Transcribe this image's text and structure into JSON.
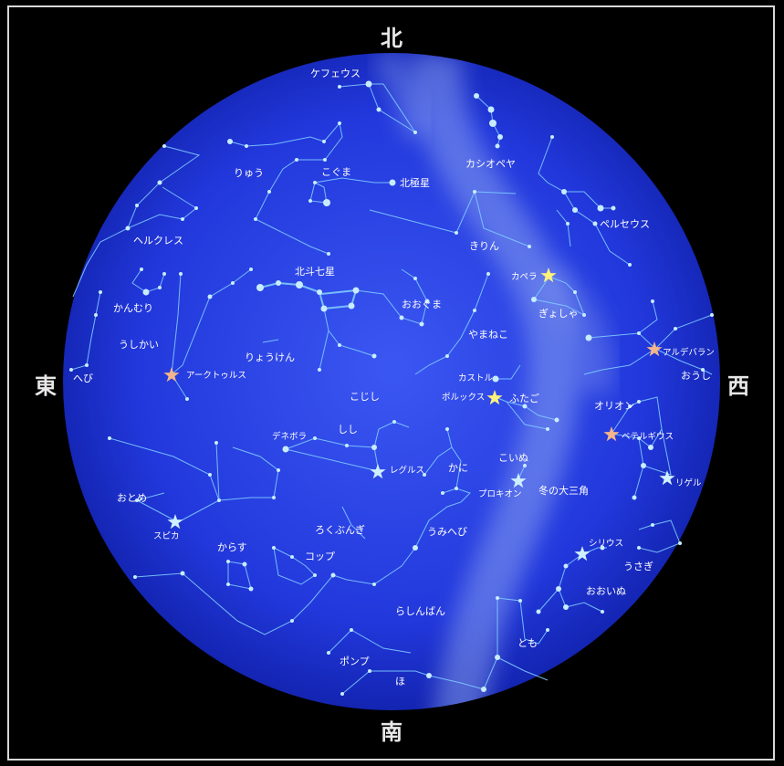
{
  "directions": {
    "north": "北",
    "south": "南",
    "east": "東",
    "west": "西"
  },
  "colors": {
    "background": "#000000",
    "sky": "#1a2bd0",
    "sky_center": "#3b55f0",
    "line": "#8fd6ff",
    "star": "#bfe8ff",
    "yellow_star": "#fff27a",
    "orange_star": "#f5b58a",
    "milky_way": "#8aa4ee"
  },
  "constellations": {
    "cepheus": "ケフェウス",
    "cassiopeia": "カシオペヤ",
    "draco": "りゅう",
    "ursa_minor": "こぐま",
    "polaris": "北極星",
    "perseus": "ペルセウス",
    "hercules": "ヘルクレス",
    "camelopardalis": "きりん",
    "big_dipper": "北斗七星",
    "capella": "カペラ",
    "corona_borealis": "かんむり",
    "ursa_major": "おおぐま",
    "auriga": "ぎょしゃ",
    "bootes": "うしかい",
    "canes_venatici": "りょうけん",
    "lynx": "やまねこ",
    "aldebaran": "アルデバラン",
    "serpens": "へび",
    "arcturus": "アークトゥルス",
    "leo_minor": "こじし",
    "castor": "カストル",
    "taurus": "おうし",
    "pollux": "ポルックス",
    "gemini": "ふたご",
    "orion": "オリオン",
    "denebola": "デネボラ",
    "leo": "しし",
    "betelgeuse": "ベテルギウス",
    "canis_minor": "こいぬ",
    "regulus": "レグルス",
    "cancer": "かに",
    "rigel": "リゲル",
    "virgo": "おとめ",
    "procyon": "プロキオン",
    "winter_triangle": "冬の大三角",
    "spica": "スピカ",
    "sextans": "ろくぶんぎ",
    "hydra": "うみへび",
    "corvus": "からす",
    "crater": "コップ",
    "sirius": "シリウス",
    "lepus": "うさぎ",
    "canis_major": "おおいぬ",
    "pyxis": "らしんばん",
    "puppis": "とも",
    "antlia": "ポンプ",
    "vela": "ほ"
  }
}
